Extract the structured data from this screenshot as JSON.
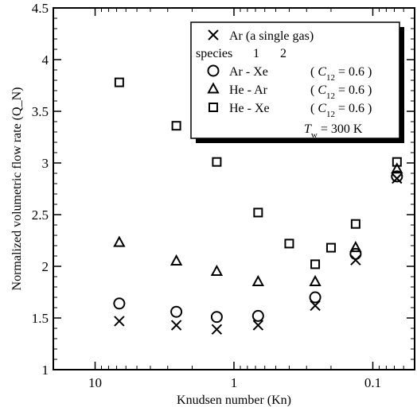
{
  "chart_data": {
    "type": "scatter",
    "xlabel": "Knudsen number (Kn)",
    "ylabel": "Normalized volumetric flow rate (Q_N)",
    "xscale": "log",
    "xreversed": true,
    "xlim": [
      20,
      0.05
    ],
    "ylim": [
      1,
      4.5
    ],
    "xticks": [
      10,
      1,
      0.1
    ],
    "xtick_labels": [
      "10",
      "1",
      "0.1"
    ],
    "yticks": [
      1,
      1.5,
      2,
      2.5,
      3,
      3.5,
      4,
      4.5
    ],
    "ytick_labels": [
      "1",
      "1.5",
      "2",
      "2.5",
      "3",
      "3.5",
      "4",
      "4.5"
    ],
    "grid": false,
    "legend_position": "top-right",
    "legend": {
      "species_label": "species",
      "species_index_1": "1",
      "species_index_2": "2",
      "temperature": "T_w = 300 K"
    },
    "series": [
      {
        "name": "Ar (a single gas)",
        "marker": "x",
        "points": [
          [
            6.7,
            1.47
          ],
          [
            2.6,
            1.43
          ],
          [
            1.33,
            1.39
          ],
          [
            0.67,
            1.43
          ],
          [
            0.26,
            1.62
          ],
          [
            0.133,
            2.06
          ],
          [
            0.067,
            2.85
          ]
        ]
      },
      {
        "name": "Ar - Xe (C12 = 0.6)",
        "marker": "circle",
        "points": [
          [
            6.7,
            1.64
          ],
          [
            2.6,
            1.56
          ],
          [
            1.33,
            1.51
          ],
          [
            0.67,
            1.52
          ],
          [
            0.26,
            1.7
          ],
          [
            0.133,
            2.12
          ],
          [
            0.067,
            2.87
          ]
        ]
      },
      {
        "name": "He - Ar (C12 = 0.6)",
        "marker": "triangle",
        "points": [
          [
            6.7,
            2.23
          ],
          [
            2.6,
            2.05
          ],
          [
            1.33,
            1.95
          ],
          [
            0.67,
            1.85
          ],
          [
            0.26,
            1.85
          ],
          [
            0.133,
            2.18
          ],
          [
            0.067,
            2.94
          ]
        ]
      },
      {
        "name": "He - Xe (C12 = 0.6)",
        "marker": "square",
        "points": [
          [
            6.7,
            3.78
          ],
          [
            2.6,
            3.36
          ],
          [
            1.33,
            3.01
          ],
          [
            0.67,
            2.52
          ],
          [
            0.4,
            2.22
          ],
          [
            0.26,
            2.02
          ],
          [
            0.2,
            2.18
          ],
          [
            0.133,
            2.41
          ],
          [
            0.067,
            3.01
          ]
        ]
      }
    ]
  }
}
